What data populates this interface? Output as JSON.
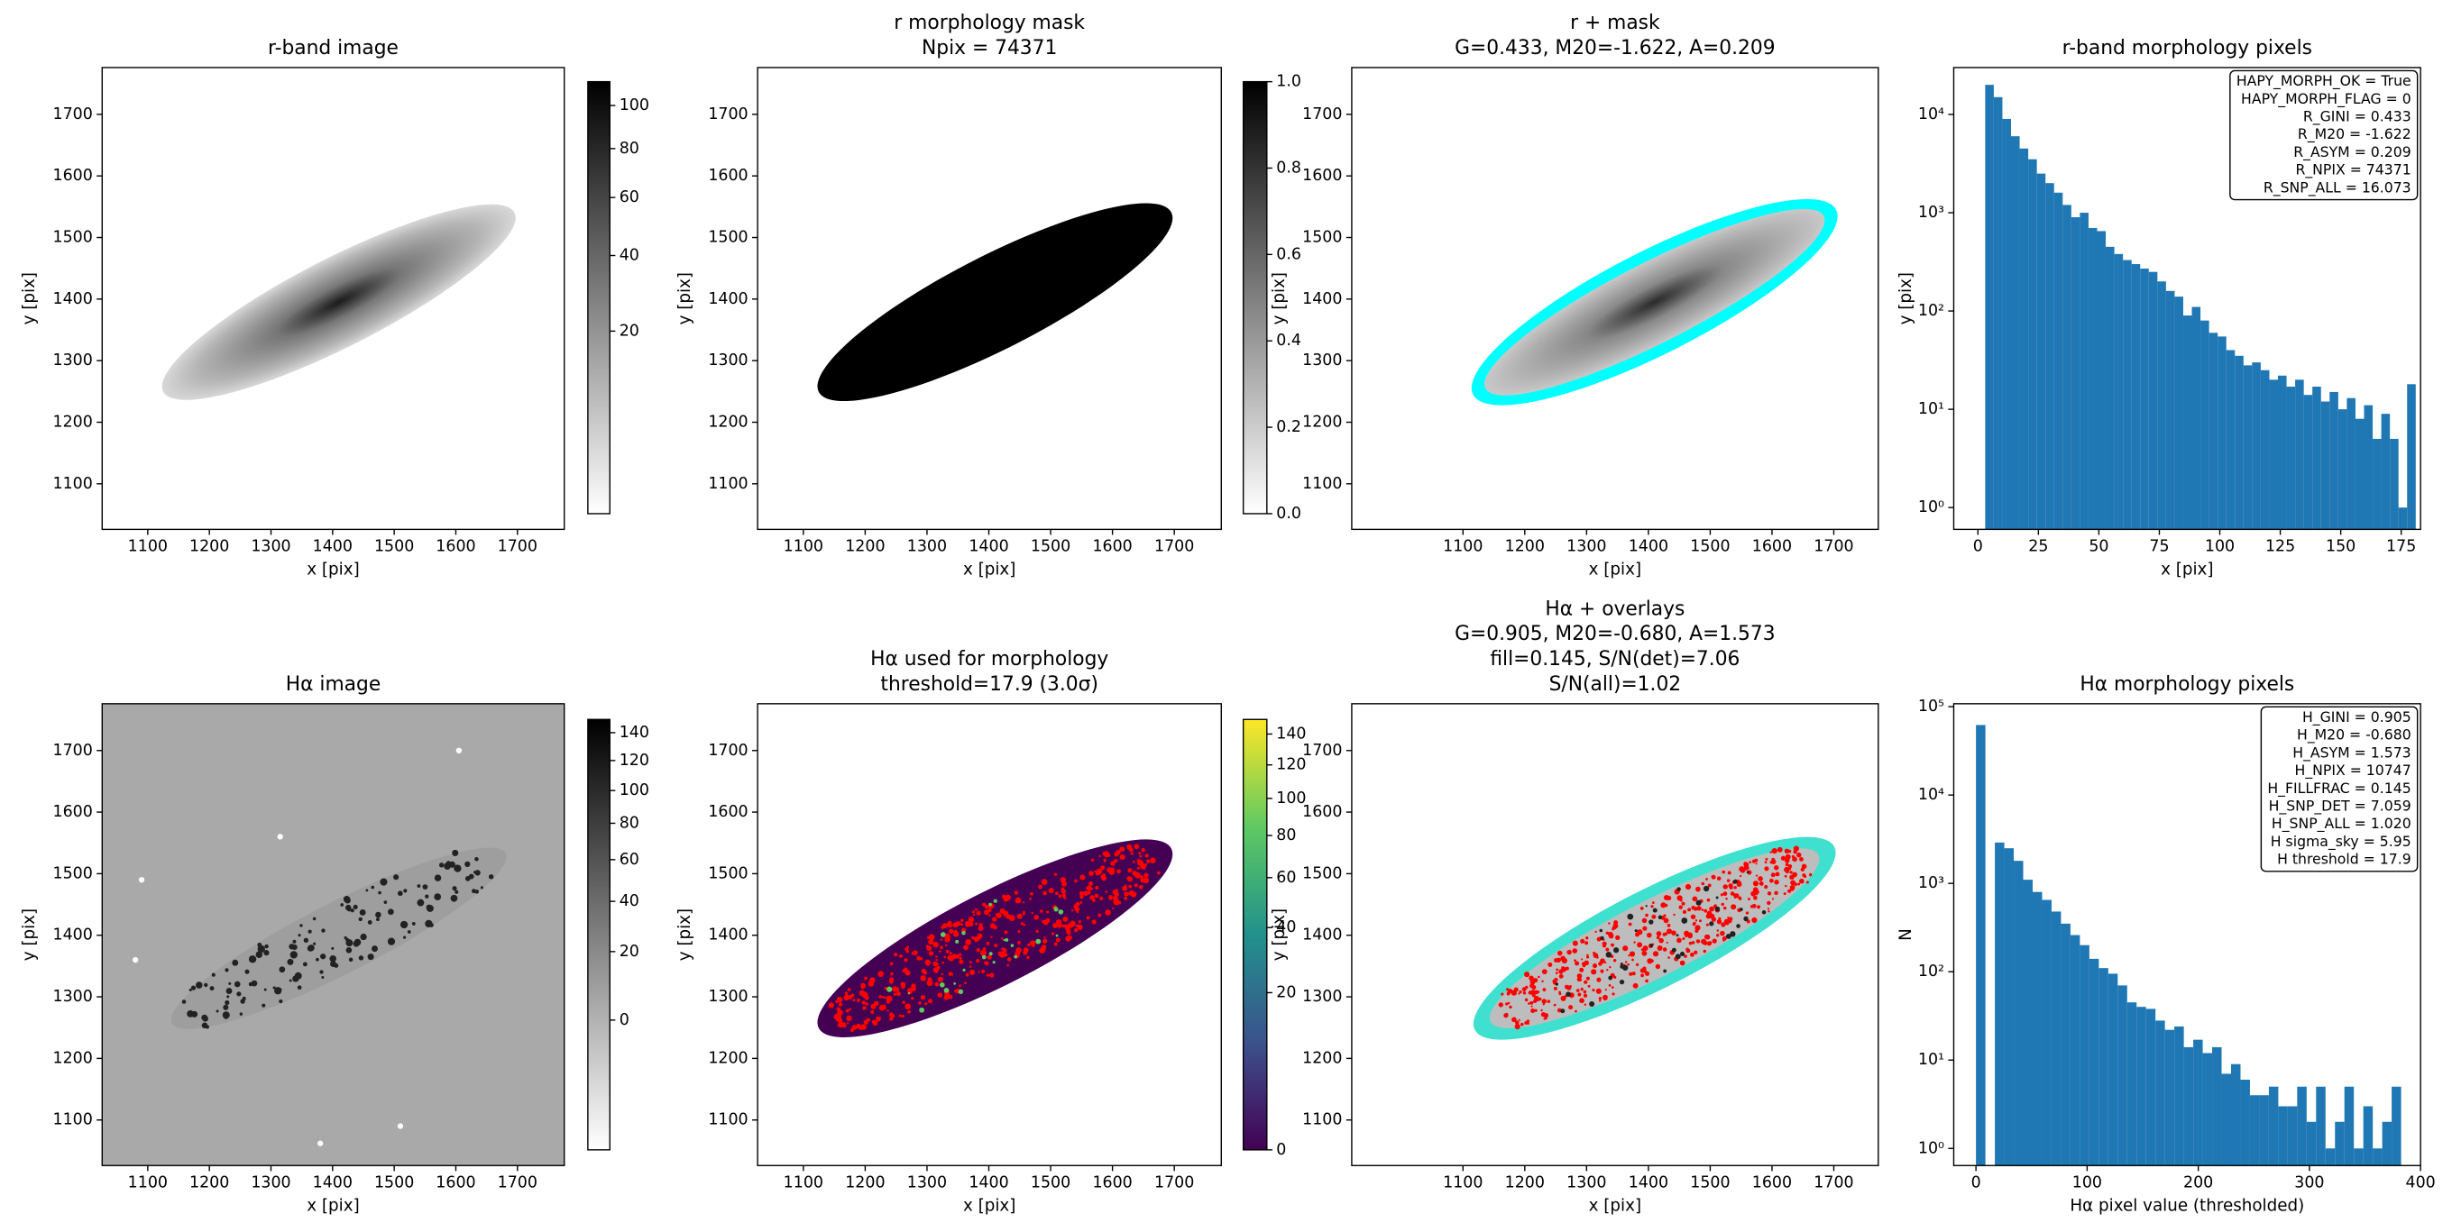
{
  "chart_data": [
    {
      "type": "image",
      "title": [
        "r-band image"
      ],
      "xlabel": "x [pix]",
      "ylabel": "y [pix]",
      "xlim": [
        1026,
        1776
      ],
      "ylim": [
        1026,
        1776
      ],
      "xticks": [
        1100,
        1200,
        1300,
        1400,
        1500,
        1600,
        1700
      ],
      "yticks": [
        1100,
        1200,
        1300,
        1400,
        1500,
        1600,
        1700
      ],
      "colorbar": {
        "cmap": "gray_r",
        "scale": "sqrt",
        "clim": [
          0,
          112
        ],
        "ticks": [
          20,
          40,
          60,
          80,
          100
        ]
      }
    },
    {
      "type": "image",
      "title": [
        "r morphology mask",
        "Npix = 74371"
      ],
      "xlabel": "x [pix]",
      "ylabel": "y [pix]",
      "xlim": [
        1026,
        1776
      ],
      "ylim": [
        1026,
        1776
      ],
      "xticks": [
        1100,
        1200,
        1300,
        1400,
        1500,
        1600,
        1700
      ],
      "yticks": [
        1100,
        1200,
        1300,
        1400,
        1500,
        1600,
        1700
      ],
      "colorbar": {
        "cmap": "gray_r",
        "scale": "linear",
        "clim": [
          0,
          1
        ],
        "ticks": [
          {
            "value": 0,
            "label": "0.0"
          },
          0.2,
          0.4,
          0.6,
          0.8,
          {
            "value": 1,
            "label": "1.0"
          }
        ]
      }
    },
    {
      "type": "image",
      "title": [
        "r + mask",
        "G=0.433, M20=-1.622, A=0.209"
      ],
      "xlabel": "x [pix]",
      "ylabel": "y [pix]",
      "xlim": [
        920,
        1772
      ],
      "ylim": [
        1026,
        1776
      ],
      "xticks": [
        1100,
        1200,
        1300,
        1400,
        1500,
        1600,
        1700
      ],
      "yticks": [
        1100,
        1200,
        1300,
        1400,
        1500,
        1600,
        1700
      ]
    },
    {
      "type": "histogram",
      "title": [
        "r-band morphology pixels"
      ],
      "xlabel": "x [pix]",
      "ylabel": "y [pix]",
      "color": "#1f77b4",
      "yscale": "log",
      "bins": [
        3,
        6.56,
        10.12,
        13.68,
        17.24,
        20.8,
        24.36,
        27.92,
        31.48,
        35.04,
        38.6,
        42.16,
        45.72,
        49.28,
        52.84,
        56.4,
        59.96,
        63.52,
        67.08,
        70.64,
        74.2,
        77.76,
        81.32,
        84.88,
        88.44,
        92,
        95.56,
        99.12,
        102.68,
        106.24,
        109.8,
        113.36,
        116.92,
        120.48,
        124.04,
        127.6,
        131.16,
        134.72,
        138.28,
        141.84,
        145.4,
        148.96,
        152.52,
        156.08,
        159.64,
        163.2,
        166.76,
        170.32,
        173.88,
        177.44,
        181
      ],
      "values": [
        20000,
        15000,
        9000,
        6000,
        4500,
        3500,
        2500,
        2000,
        1600,
        1200,
        900,
        1000,
        700,
        650,
        450,
        380,
        330,
        300,
        270,
        250,
        200,
        160,
        140,
        90,
        110,
        80,
        60,
        55,
        40,
        35,
        28,
        30,
        25,
        20,
        22,
        17,
        20,
        14,
        17,
        12,
        15,
        10,
        13,
        8,
        11,
        5,
        9,
        5,
        1,
        18
      ],
      "xlim": [
        -10,
        183
      ],
      "ylim": [
        0.6,
        30000
      ],
      "xticks": [
        0,
        25,
        50,
        75,
        100,
        125,
        150,
        175
      ],
      "yticks": [
        {
          "value": 1,
          "label": "10⁰"
        },
        {
          "value": 10,
          "label": "10¹"
        },
        {
          "value": 100,
          "label": "10²"
        },
        {
          "value": 1000,
          "label": "10³"
        },
        {
          "value": 10000,
          "label": "10⁴"
        }
      ],
      "annotation": [
        "HAPY_MORPH_OK = True",
        "HAPY_MORPH_FLAG = 0",
        "R_GINI = 0.433",
        "R_M20 = -1.622",
        "R_ASYM = 0.209",
        "R_NPIX = 74371",
        "R_SNP_ALL = 16.073"
      ]
    },
    {
      "type": "image",
      "title": [
        "Hα image"
      ],
      "xlabel": "x [pix]",
      "ylabel": "y [pix]",
      "xlim": [
        1026,
        1776
      ],
      "ylim": [
        1026,
        1776
      ],
      "xticks": [
        1100,
        1200,
        1300,
        1400,
        1500,
        1600,
        1700
      ],
      "yticks": [
        1100,
        1200,
        1300,
        1400,
        1500,
        1600,
        1700
      ],
      "colorbar": {
        "cmap": "gray_r",
        "scale": "sqrt",
        "clim": [
          -15,
          150
        ],
        "ticks": [
          0,
          20,
          40,
          60,
          80,
          100,
          120,
          140
        ]
      }
    },
    {
      "type": "image",
      "title": [
        "Hα used for morphology",
        "threshold=17.9 (3.0σ)"
      ],
      "xlabel": "x [pix]",
      "ylabel": "y [pix]",
      "xlim": [
        1026,
        1776
      ],
      "ylim": [
        1026,
        1776
      ],
      "xticks": [
        1100,
        1200,
        1300,
        1400,
        1500,
        1600,
        1700
      ],
      "yticks": [
        1100,
        1200,
        1300,
        1400,
        1500,
        1600,
        1700
      ],
      "colorbar": {
        "cmap": "viridis",
        "scale": "sqrt",
        "clim": [
          0,
          150
        ],
        "ticks": [
          0,
          20,
          40,
          60,
          80,
          100,
          120,
          140
        ]
      }
    },
    {
      "type": "image",
      "title": [
        "Hα + overlays",
        "G=0.905, M20=-0.680, A=1.573",
        "fill=0.145, S/N(det)=7.06",
        "S/N(all)=1.02"
      ],
      "xlabel": "x [pix]",
      "ylabel": "y [pix]",
      "xlim": [
        920,
        1772
      ],
      "ylim": [
        1026,
        1776
      ],
      "xticks": [
        1100,
        1200,
        1300,
        1400,
        1500,
        1600,
        1700
      ],
      "yticks": [
        1100,
        1200,
        1300,
        1400,
        1500,
        1600,
        1700
      ]
    },
    {
      "type": "histogram",
      "title": [
        "Hα morphology pixels"
      ],
      "xlabel": "Hα pixel value (thresholded)",
      "ylabel": "N",
      "color": "#1f77b4",
      "yscale": "log",
      "bins": [
        0,
        8.5,
        17,
        25.5,
        34,
        42.5,
        51,
        59.5,
        68,
        76.5,
        85,
        93.5,
        102,
        110.5,
        119,
        127.5,
        136,
        144.5,
        153,
        161.5,
        170,
        178.5,
        187,
        195.5,
        204,
        212.5,
        221,
        229.5,
        238,
        246.5,
        255,
        263.5,
        272,
        280.5,
        289,
        297.5,
        306,
        314.5,
        323,
        331.5,
        340,
        348.5,
        357,
        365.5,
        374,
        382.5
      ],
      "values": [
        62000,
        0,
        2900,
        2500,
        1800,
        1100,
        800,
        650,
        480,
        350,
        260,
        200,
        140,
        110,
        95,
        70,
        45,
        40,
        38,
        28,
        22,
        24,
        14,
        17,
        12,
        14,
        7,
        9,
        6,
        4,
        4,
        5,
        3,
        3,
        5,
        2,
        5,
        1,
        2,
        5,
        1,
        3,
        1,
        2,
        5
      ],
      "xlim": [
        -20,
        400
      ],
      "ylim": [
        0.64,
        108000
      ],
      "xticks": [
        0,
        100,
        200,
        300,
        400
      ],
      "yticks": [
        {
          "value": 1,
          "label": "10⁰"
        },
        {
          "value": 10,
          "label": "10¹"
        },
        {
          "value": 100,
          "label": "10²"
        },
        {
          "value": 1000,
          "label": "10³"
        },
        {
          "value": 10000,
          "label": "10⁴"
        },
        {
          "value": 100000,
          "label": "10⁵"
        }
      ],
      "annotation": [
        "H_GINI = 0.905",
        "H_M20 = -0.680",
        "H_ASYM = 1.573",
        "H_NPIX = 10747",
        "H_FILLFRAC = 0.145",
        "H_SNP_DET = 7.059",
        "H_SNP_ALL = 1.020",
        "H sigma_sky = 5.95",
        "H threshold = 17.9"
      ]
    }
  ]
}
